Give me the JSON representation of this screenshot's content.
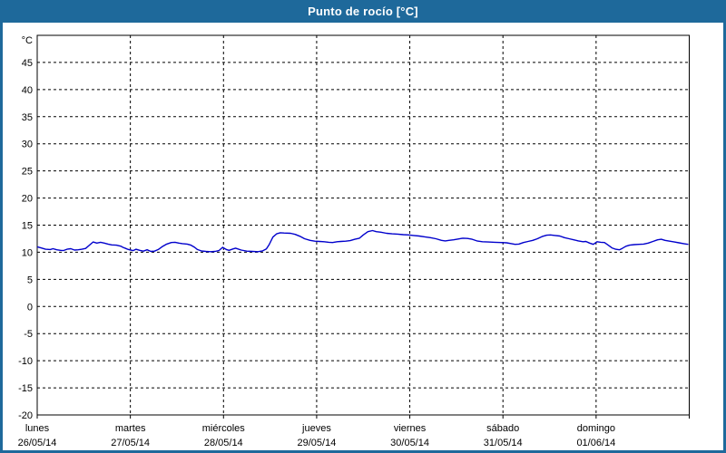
{
  "window": {
    "title": "Punto de rocío [°C]"
  },
  "colors": {
    "titlebar_bg": "#1e699b",
    "frame_border": "#1e699b",
    "title_text": "#ffffff",
    "plot_bg": "#ffffff",
    "plot_border": "#000000",
    "grid": "#000000",
    "tick_text": "#000000",
    "line": "#0000cc"
  },
  "chart_data": {
    "type": "line",
    "title": "Punto de rocío [°C]",
    "ylabel": "°C",
    "xlabel": "",
    "grid": true,
    "legend": "none",
    "y_axis": {
      "unit_label": "°C",
      "min": -20,
      "max": 50,
      "tick_values": [
        45,
        40,
        35,
        30,
        25,
        20,
        15,
        10,
        5,
        0,
        -5,
        -10,
        -15,
        -20
      ]
    },
    "x_axis": {
      "span_days": 7,
      "days": [
        {
          "name": "lunes",
          "date": "26/05/14"
        },
        {
          "name": "martes",
          "date": "27/05/14"
        },
        {
          "name": "miércoles",
          "date": "28/05/14"
        },
        {
          "name": "jueves",
          "date": "29/05/14"
        },
        {
          "name": "viernes",
          "date": "30/05/14"
        },
        {
          "name": "sábado",
          "date": "31/05/14"
        },
        {
          "name": "domingo",
          "date": "01/06/14"
        }
      ]
    },
    "series": [
      {
        "name": "Punto de rocío",
        "unit": "°C",
        "color": "#0000cc",
        "points": [
          [
            0.0,
            11.0
          ],
          [
            0.04,
            10.8
          ],
          [
            0.09,
            10.55
          ],
          [
            0.14,
            10.5
          ],
          [
            0.17,
            10.65
          ],
          [
            0.21,
            10.45
          ],
          [
            0.25,
            10.35
          ],
          [
            0.28,
            10.3
          ],
          [
            0.32,
            10.55
          ],
          [
            0.36,
            10.65
          ],
          [
            0.4,
            10.4
          ],
          [
            0.44,
            10.45
          ],
          [
            0.48,
            10.55
          ],
          [
            0.52,
            10.7
          ],
          [
            0.56,
            11.3
          ],
          [
            0.6,
            11.9
          ],
          [
            0.64,
            11.7
          ],
          [
            0.68,
            11.85
          ],
          [
            0.72,
            11.7
          ],
          [
            0.76,
            11.5
          ],
          [
            0.8,
            11.35
          ],
          [
            0.85,
            11.3
          ],
          [
            0.9,
            11.1
          ],
          [
            0.92,
            10.9
          ],
          [
            0.95,
            10.7
          ],
          [
            0.97,
            10.55
          ],
          [
            0.99,
            10.45
          ],
          [
            1.03,
            10.3
          ],
          [
            1.06,
            10.55
          ],
          [
            1.1,
            10.35
          ],
          [
            1.14,
            10.2
          ],
          [
            1.18,
            10.45
          ],
          [
            1.22,
            10.15
          ],
          [
            1.26,
            10.2
          ],
          [
            1.3,
            10.5
          ],
          [
            1.34,
            11.0
          ],
          [
            1.39,
            11.5
          ],
          [
            1.44,
            11.8
          ],
          [
            1.48,
            11.85
          ],
          [
            1.52,
            11.7
          ],
          [
            1.56,
            11.6
          ],
          [
            1.61,
            11.5
          ],
          [
            1.65,
            11.3
          ],
          [
            1.69,
            10.9
          ],
          [
            1.72,
            10.5
          ],
          [
            1.76,
            10.25
          ],
          [
            1.81,
            10.15
          ],
          [
            1.86,
            10.1
          ],
          [
            1.91,
            10.15
          ],
          [
            1.95,
            10.3
          ],
          [
            1.99,
            10.9
          ],
          [
            2.03,
            10.5
          ],
          [
            2.06,
            10.35
          ],
          [
            2.1,
            10.6
          ],
          [
            2.13,
            10.75
          ],
          [
            2.19,
            10.4
          ],
          [
            2.25,
            10.2
          ],
          [
            2.31,
            10.15
          ],
          [
            2.37,
            10.1
          ],
          [
            2.42,
            10.25
          ],
          [
            2.46,
            10.6
          ],
          [
            2.49,
            11.4
          ],
          [
            2.53,
            12.8
          ],
          [
            2.57,
            13.4
          ],
          [
            2.61,
            13.6
          ],
          [
            2.65,
            13.55
          ],
          [
            2.72,
            13.5
          ],
          [
            2.77,
            13.3
          ],
          [
            2.82,
            12.95
          ],
          [
            2.87,
            12.5
          ],
          [
            2.93,
            12.2
          ],
          [
            2.98,
            12.05
          ],
          [
            3.03,
            12.0
          ],
          [
            3.08,
            11.95
          ],
          [
            3.13,
            11.85
          ],
          [
            3.17,
            11.8
          ],
          [
            3.22,
            11.95
          ],
          [
            3.26,
            12.0
          ],
          [
            3.31,
            12.05
          ],
          [
            3.36,
            12.15
          ],
          [
            3.41,
            12.4
          ],
          [
            3.46,
            12.6
          ],
          [
            3.5,
            13.2
          ],
          [
            3.55,
            13.8
          ],
          [
            3.6,
            14.0
          ],
          [
            3.64,
            13.8
          ],
          [
            3.69,
            13.7
          ],
          [
            3.75,
            13.5
          ],
          [
            3.81,
            13.4
          ],
          [
            3.87,
            13.35
          ],
          [
            3.93,
            13.25
          ],
          [
            3.99,
            13.2
          ],
          [
            4.04,
            13.1
          ],
          [
            4.1,
            13.0
          ],
          [
            4.16,
            12.85
          ],
          [
            4.22,
            12.7
          ],
          [
            4.28,
            12.5
          ],
          [
            4.34,
            12.2
          ],
          [
            4.38,
            12.1
          ],
          [
            4.42,
            12.2
          ],
          [
            4.47,
            12.3
          ],
          [
            4.52,
            12.45
          ],
          [
            4.57,
            12.6
          ],
          [
            4.62,
            12.55
          ],
          [
            4.67,
            12.4
          ],
          [
            4.72,
            12.1
          ],
          [
            4.78,
            11.95
          ],
          [
            4.84,
            11.9
          ],
          [
            4.91,
            11.85
          ],
          [
            4.98,
            11.8
          ],
          [
            5.04,
            11.75
          ],
          [
            5.09,
            11.6
          ],
          [
            5.13,
            11.45
          ],
          [
            5.17,
            11.5
          ],
          [
            5.22,
            11.8
          ],
          [
            5.27,
            12.0
          ],
          [
            5.32,
            12.2
          ],
          [
            5.37,
            12.5
          ],
          [
            5.42,
            12.9
          ],
          [
            5.47,
            13.15
          ],
          [
            5.51,
            13.2
          ],
          [
            5.56,
            13.1
          ],
          [
            5.61,
            13.0
          ],
          [
            5.66,
            12.7
          ],
          [
            5.71,
            12.5
          ],
          [
            5.76,
            12.3
          ],
          [
            5.81,
            12.1
          ],
          [
            5.86,
            11.95
          ],
          [
            5.89,
            12.0
          ],
          [
            5.93,
            11.7
          ],
          [
            5.97,
            11.45
          ],
          [
            6.01,
            11.95
          ],
          [
            6.05,
            11.85
          ],
          [
            6.09,
            11.8
          ],
          [
            6.13,
            11.3
          ],
          [
            6.17,
            10.8
          ],
          [
            6.21,
            10.55
          ],
          [
            6.25,
            10.45
          ],
          [
            6.28,
            10.7
          ],
          [
            6.32,
            11.1
          ],
          [
            6.36,
            11.3
          ],
          [
            6.41,
            11.4
          ],
          [
            6.46,
            11.45
          ],
          [
            6.51,
            11.5
          ],
          [
            6.56,
            11.7
          ],
          [
            6.61,
            12.0
          ],
          [
            6.66,
            12.3
          ],
          [
            6.7,
            12.4
          ],
          [
            6.74,
            12.2
          ],
          [
            6.79,
            12.05
          ],
          [
            6.84,
            11.9
          ],
          [
            6.89,
            11.75
          ],
          [
            6.94,
            11.6
          ],
          [
            6.97,
            11.5
          ],
          [
            6.99,
            11.45
          ]
        ]
      }
    ]
  }
}
